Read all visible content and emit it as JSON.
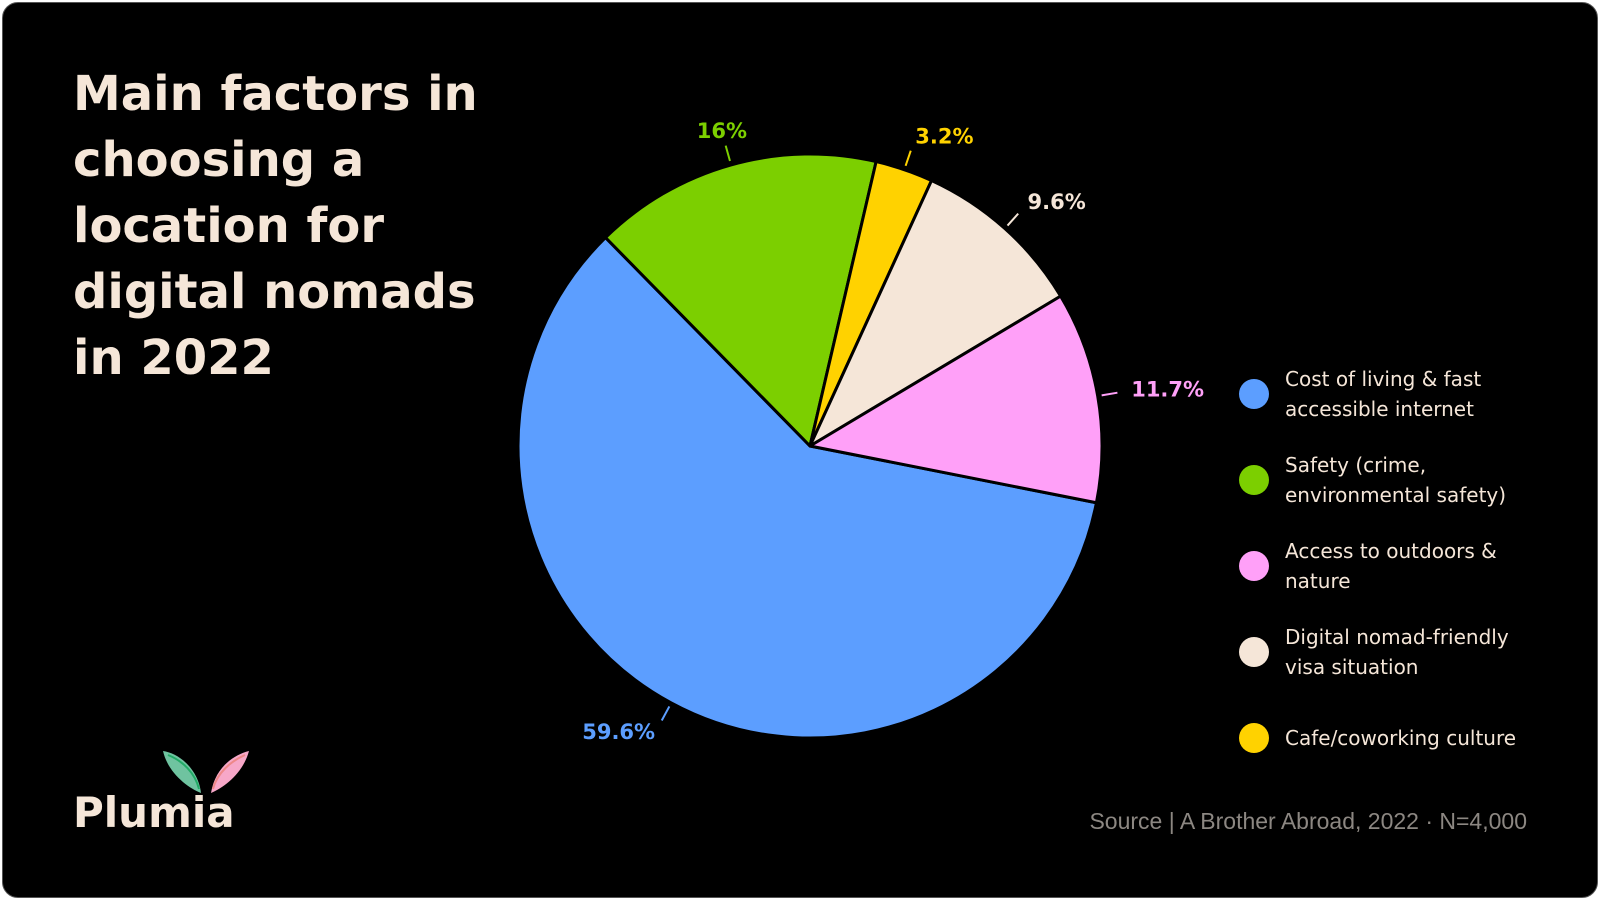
{
  "chart_data": {
    "type": "pie",
    "title": "Main factors in choosing a location for digital nomads in 2022",
    "categories": [
      "Cost of living & fast accessible internet",
      "Safety (crime, environmental safety)",
      "Access to outdoors & nature",
      "Digital nomad-friendly visa situation",
      "Cafe/coworking culture"
    ],
    "values": [
      59.6,
      16,
      11.7,
      9.6,
      3.2
    ],
    "value_labels": [
      "59.6%",
      "16%",
      "11.7%",
      "9.6%",
      "3.2%"
    ],
    "colors": [
      "#5c9eff",
      "#7ccf00",
      "#ffa0f8",
      "#f5e6d8",
      "#ffd200"
    ],
    "legend": "right",
    "source": "Source | A Brother Abroad, 2022 · N=4,000"
  },
  "brand": "Plumia"
}
